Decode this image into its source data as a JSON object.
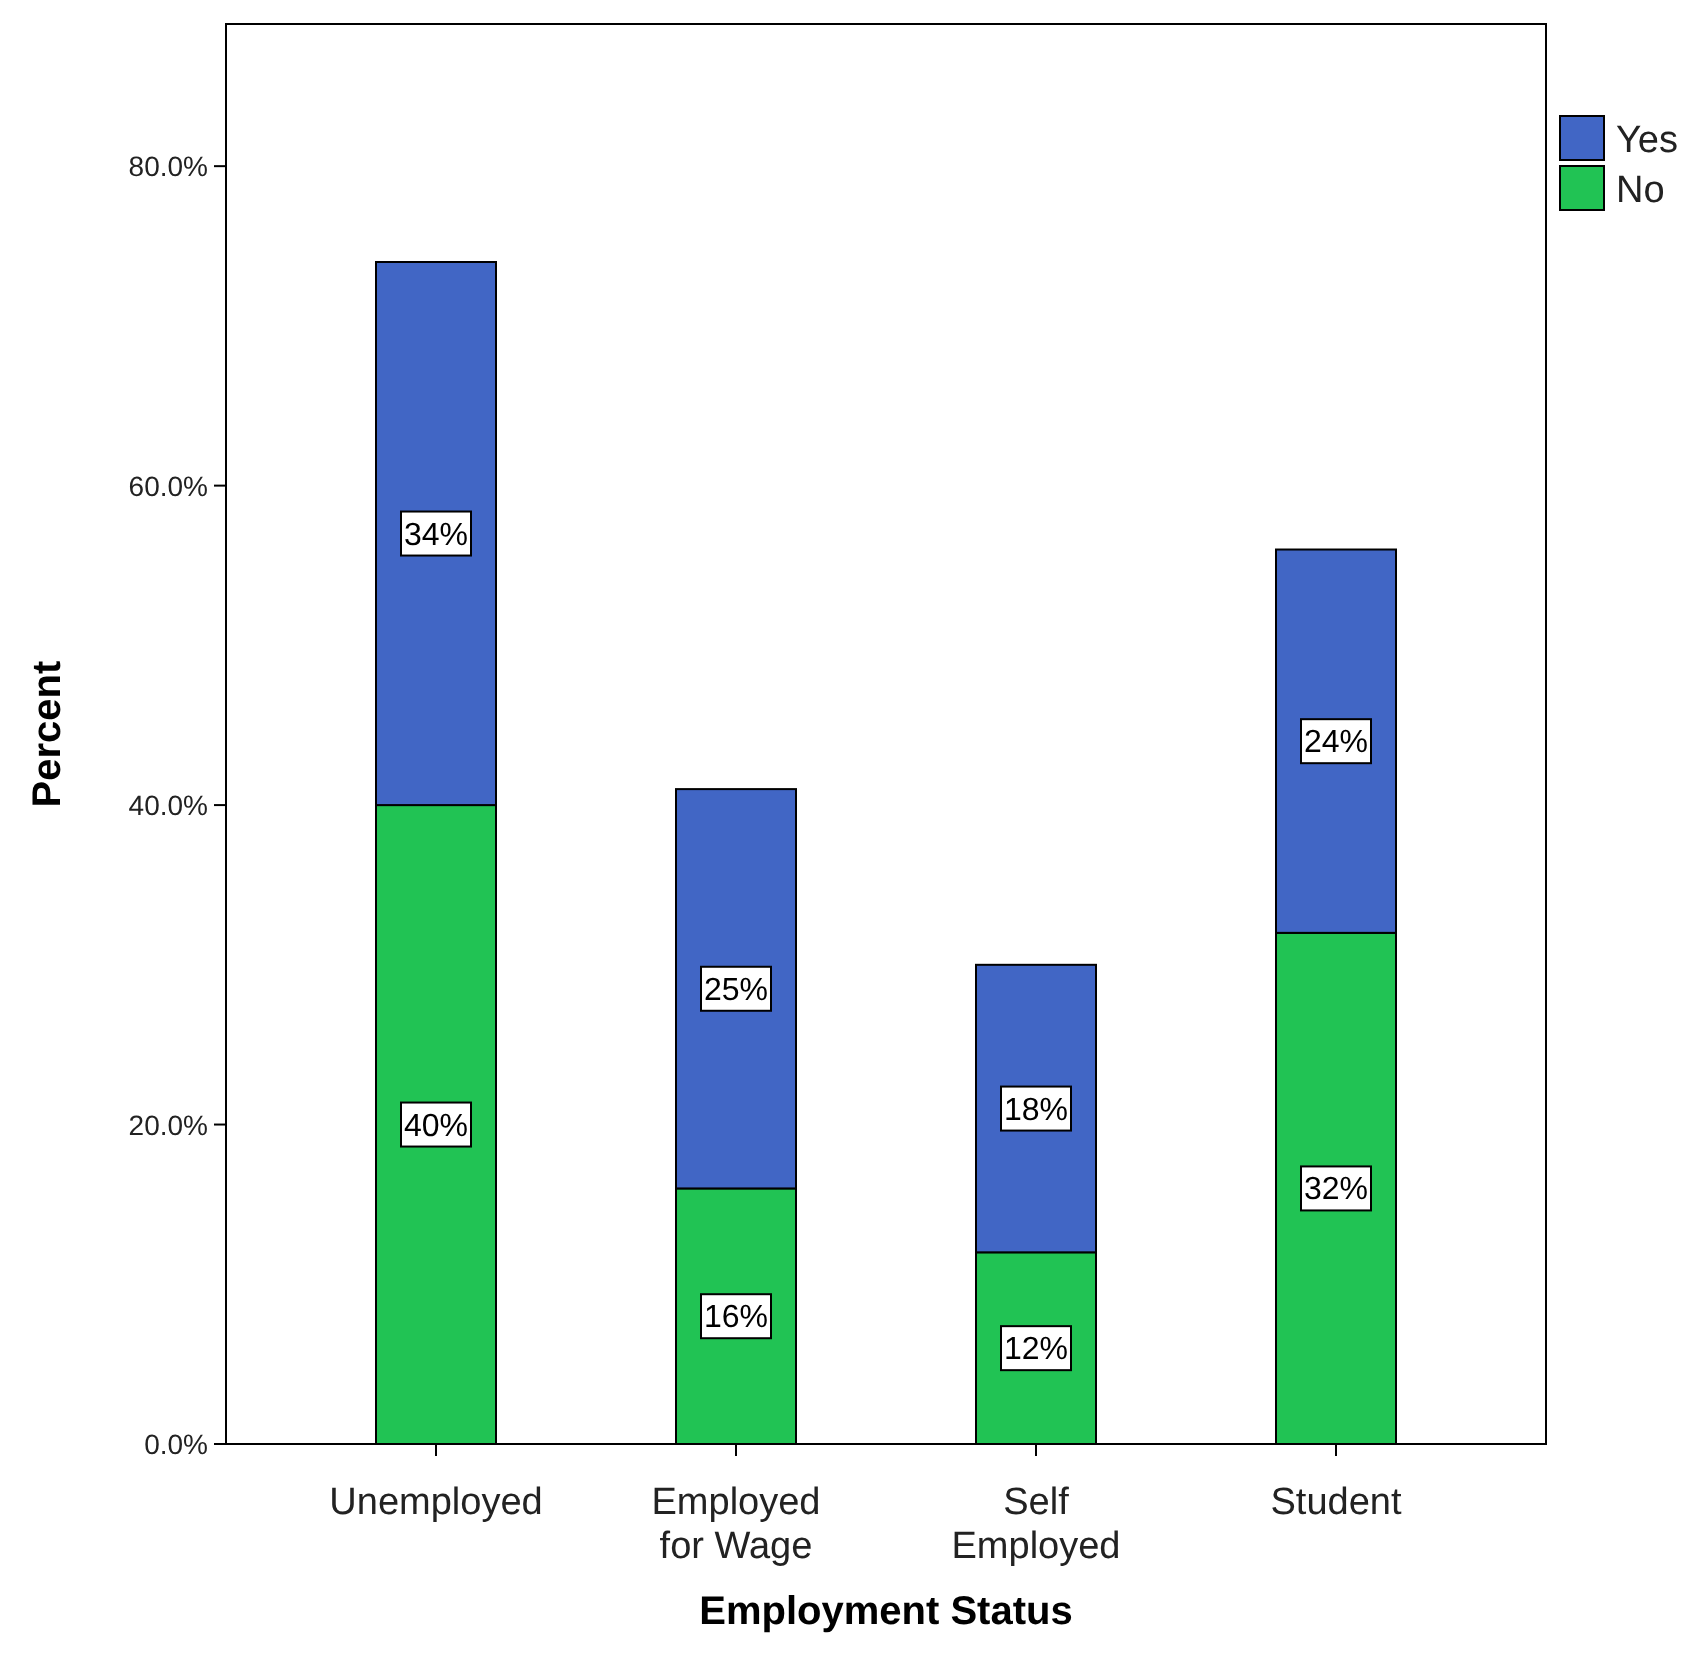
{
  "chart_data": {
    "type": "bar",
    "stacked": true,
    "xlabel": "Employment Status",
    "ylabel": "Percent",
    "categories": [
      "Unemployed",
      "Employed for Wage",
      "Self Employed",
      "Student"
    ],
    "series": [
      {
        "name": "No",
        "color": "#21c354",
        "values": [
          40,
          16,
          12,
          32
        ],
        "value_labels": [
          "40%",
          "16%",
          "12%",
          "32%"
        ]
      },
      {
        "name": "Yes",
        "color": "#4166c5",
        "values": [
          34,
          25,
          18,
          24
        ],
        "value_labels": [
          "34%",
          "25%",
          "18%",
          "24%"
        ]
      }
    ],
    "ylim": [
      0,
      88.9
    ],
    "yticks": [
      {
        "value": 0,
        "label": "0.0%"
      },
      {
        "value": 20,
        "label": "20.0%"
      },
      {
        "value": 40,
        "label": "40.0%"
      },
      {
        "value": 60,
        "label": "60.0%"
      },
      {
        "value": 80,
        "label": "80.0%"
      }
    ],
    "grid": false,
    "legend": "top right"
  }
}
